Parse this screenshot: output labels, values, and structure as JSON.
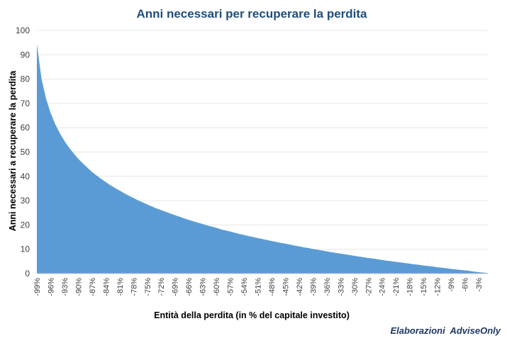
{
  "chart_data": {
    "type": "area",
    "title": "Anni necessari per recuperare la perdita",
    "xlabel": "Entità della perdita (in % del capitale investito)",
    "ylabel": "Anni necessari a recuperare la perdita",
    "ylim": [
      0,
      100
    ],
    "yticks": [
      "0",
      "10",
      "20",
      "30",
      "40",
      "50",
      "60",
      "70",
      "80",
      "90",
      "100"
    ],
    "grid": true,
    "legend": "none",
    "color": "#5b9bd5",
    "x": [
      -99,
      -98,
      -97,
      -96,
      -95,
      -94,
      -93,
      -92,
      -91,
      -90,
      -89,
      -88,
      -87,
      -86,
      -85,
      -84,
      -83,
      -82,
      -81,
      -80,
      -79,
      -78,
      -77,
      -76,
      -75,
      -74,
      -73,
      -72,
      -71,
      -70,
      -69,
      -68,
      -67,
      -66,
      -65,
      -64,
      -63,
      -62,
      -61,
      -60,
      -59,
      -58,
      -57,
      -56,
      -55,
      -54,
      -53,
      -52,
      -51,
      -50,
      -49,
      -48,
      -47,
      -46,
      -45,
      -44,
      -43,
      -42,
      -41,
      -40,
      -39,
      -38,
      -37,
      -36,
      -35,
      -34,
      -33,
      -32,
      -31,
      -30,
      -29,
      -28,
      -27,
      -26,
      -25,
      -24,
      -23,
      -22,
      -21,
      -20,
      -19,
      -18,
      -17,
      -16,
      -15,
      -14,
      -13,
      -12,
      -11,
      -10,
      -9,
      -8,
      -7,
      -6,
      -5,
      -4,
      -3,
      -2,
      -1
    ],
    "values": [
      94.4,
      80.2,
      71.9,
      66.0,
      61.4,
      57.7,
      54.5,
      51.8,
      49.4,
      47.2,
      45.3,
      43.5,
      41.8,
      40.3,
      38.9,
      37.6,
      36.3,
      35.2,
      34.1,
      33.0,
      32.0,
      31.1,
      30.1,
      29.3,
      28.4,
      27.6,
      26.8,
      26.1,
      25.4,
      24.7,
      24.0,
      23.4,
      22.7,
      22.1,
      21.5,
      20.9,
      20.4,
      19.8,
      19.3,
      18.8,
      18.2,
      17.7,
      17.3,
      16.8,
      16.3,
      15.9,
      15.4,
      15.0,
      14.6,
      14.2,
      13.8,
      13.4,
      13.0,
      12.6,
      12.3,
      11.9,
      11.5,
      11.2,
      10.8,
      10.5,
      10.1,
      9.8,
      9.5,
      9.1,
      8.8,
      8.5,
      8.2,
      7.9,
      7.6,
      7.3,
      7.0,
      6.7,
      6.4,
      6.2,
      5.9,
      5.6,
      5.3,
      5.1,
      4.8,
      4.6,
      4.3,
      4.1,
      3.8,
      3.6,
      3.3,
      3.1,
      2.9,
      2.6,
      2.4,
      2.2,
      1.9,
      1.7,
      1.5,
      1.3,
      1.1,
      0.8,
      0.6,
      0.4,
      0.2
    ],
    "xticks": [
      "-99%",
      "-96%",
      "-93%",
      "-90%",
      "-87%",
      "-84%",
      "-81%",
      "-78%",
      "-75%",
      "-72%",
      "-69%",
      "-66%",
      "-63%",
      "-60%",
      "-57%",
      "-54%",
      "-51%",
      "-48%",
      "-45%",
      "-42%",
      "-39%",
      "-36%",
      "-33%",
      "-30%",
      "-27%",
      "-24%",
      "-21%",
      "-18%",
      "-15%",
      "-12%",
      "-9%",
      "-6%",
      "-3%"
    ]
  },
  "source": "Elaborazioni  AdviseOnly"
}
